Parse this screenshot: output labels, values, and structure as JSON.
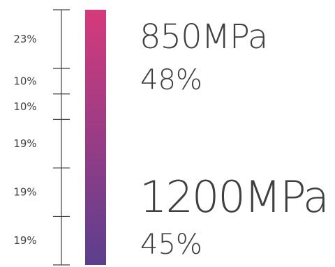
{
  "chart_data": {
    "type": "bar",
    "orientation": "vertical-stacked-scale",
    "segments": [
      {
        "label": "23%",
        "value": 23
      },
      {
        "label": "10%",
        "value": 10
      },
      {
        "label": "10%",
        "value": 10
      },
      {
        "label": "19%",
        "value": 19
      },
      {
        "label": "19%",
        "value": 19
      },
      {
        "label": "19%",
        "value": 19
      }
    ],
    "gradient": {
      "top": "#d63a7c",
      "bottom": "#5b3f8e"
    },
    "callouts": [
      {
        "value": "850MPa",
        "percent": "48%"
      },
      {
        "value": "1200MPa",
        "percent": "45%"
      }
    ]
  }
}
